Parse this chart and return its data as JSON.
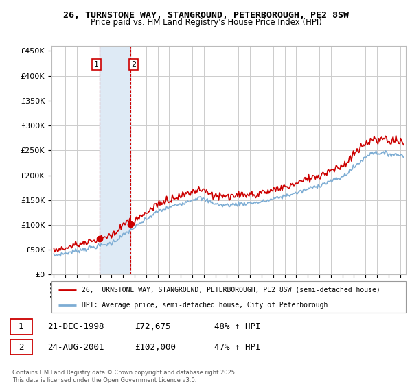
{
  "title1": "26, TURNSTONE WAY, STANGROUND, PETERBOROUGH, PE2 8SW",
  "title2": "Price paid vs. HM Land Registry's House Price Index (HPI)",
  "ylabel_ticks": [
    "£0",
    "£50K",
    "£100K",
    "£150K",
    "£200K",
    "£250K",
    "£300K",
    "£350K",
    "£400K",
    "£450K"
  ],
  "ytick_vals": [
    0,
    50000,
    100000,
    150000,
    200000,
    250000,
    300000,
    350000,
    400000,
    450000
  ],
  "ylim": [
    0,
    460000
  ],
  "xlim_start": 1994.8,
  "xlim_end": 2025.5,
  "purchase1": {
    "date_num": 1998.97,
    "price": 72675,
    "label": "1"
  },
  "purchase2": {
    "date_num": 2001.65,
    "price": 102000,
    "label": "2"
  },
  "legend_line1": "26, TURNSTONE WAY, STANGROUND, PETERBOROUGH, PE2 8SW (semi-detached house)",
  "legend_line2": "HPI: Average price, semi-detached house, City of Peterborough",
  "table_row1": [
    "1",
    "21-DEC-1998",
    "£72,675",
    "48% ↑ HPI"
  ],
  "table_row2": [
    "2",
    "24-AUG-2001",
    "£102,000",
    "47% ↑ HPI"
  ],
  "line_color_red": "#cc0000",
  "line_color_blue": "#7dadd4",
  "bg_color": "#ffffff",
  "shading_color": "#deeaf5",
  "grid_color": "#cccccc",
  "footnote": "Contains HM Land Registry data © Crown copyright and database right 2025.\nThis data is licensed under the Open Government Licence v3.0."
}
